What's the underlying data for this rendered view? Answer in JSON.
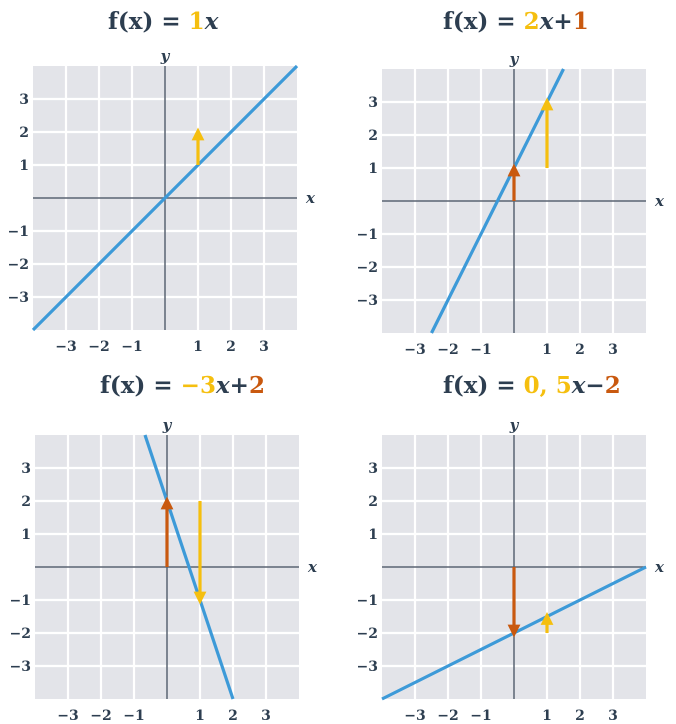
{
  "colors": {
    "grid_bg": "#e3e4e9",
    "grid_line": "#ffffff",
    "axis": "#5a6472",
    "line": "#3d9ad8",
    "slope": "#f5bf0f",
    "intercept": "#c9590f",
    "text": "#2d3e50"
  },
  "chart_data": [
    {
      "type": "line",
      "title": {
        "prefix": "f(x) =",
        "slope": "1",
        "var": "x",
        "sign": "",
        "intercept": ""
      },
      "xlabel": "x",
      "ylabel": "y",
      "xlim": [
        -4,
        4
      ],
      "ylim": [
        -4,
        4
      ],
      "x_ticks": [
        "−3",
        "−2",
        "−1",
        "1",
        "2",
        "3"
      ],
      "y_ticks": [
        "3",
        "2",
        "1",
        "−1",
        "−2",
        "−3"
      ],
      "slope_value": 1,
      "intercept_value": 0,
      "line_points": [
        [
          -4,
          -4
        ],
        [
          4,
          4
        ]
      ],
      "slope_arrow": {
        "from": [
          1,
          1
        ],
        "to": [
          1,
          2
        ]
      },
      "intercept_arrow": null
    },
    {
      "type": "line",
      "title": {
        "prefix": "f(x) =",
        "slope": "2",
        "var": "x",
        "sign": "+",
        "intercept": "1"
      },
      "xlabel": "x",
      "ylabel": "y",
      "xlim": [
        -4,
        4
      ],
      "ylim": [
        -4,
        4
      ],
      "x_ticks": [
        "−3",
        "−2",
        "−1",
        "1",
        "2",
        "3"
      ],
      "y_ticks": [
        "3",
        "2",
        "1",
        "−1",
        "−2",
        "−3"
      ],
      "slope_value": 2,
      "intercept_value": 1,
      "line_points": [
        [
          -2.5,
          -4
        ],
        [
          1.5,
          4
        ]
      ],
      "slope_arrow": {
        "from": [
          1,
          1
        ],
        "to": [
          1,
          3
        ]
      },
      "intercept_arrow": {
        "from": [
          0,
          0
        ],
        "to": [
          0,
          1
        ]
      }
    },
    {
      "type": "line",
      "title": {
        "prefix": "f(x) =",
        "slope": "−3",
        "var": "x",
        "sign": "+",
        "intercept": "2"
      },
      "xlabel": "x",
      "ylabel": "y",
      "xlim": [
        -4,
        4
      ],
      "ylim": [
        -4,
        4
      ],
      "x_ticks": [
        "−3",
        "−2",
        "−1",
        "1",
        "2",
        "3"
      ],
      "y_ticks": [
        "3",
        "2",
        "1",
        "−1",
        "−2",
        "−3"
      ],
      "slope_value": -3,
      "intercept_value": 2,
      "line_points": [
        [
          -0.667,
          4
        ],
        [
          2,
          -4
        ]
      ],
      "slope_arrow": {
        "from": [
          1,
          2
        ],
        "to": [
          1,
          -1
        ]
      },
      "intercept_arrow": {
        "from": [
          0,
          0
        ],
        "to": [
          0,
          2
        ]
      }
    },
    {
      "type": "line",
      "title": {
        "prefix": "f(x) =",
        "slope": "0, 5",
        "var": "x",
        "sign": "−",
        "intercept": "2"
      },
      "xlabel": "x",
      "ylabel": "y",
      "xlim": [
        -4,
        4
      ],
      "ylim": [
        -4,
        4
      ],
      "x_ticks": [
        "−3",
        "−2",
        "−1",
        "1",
        "2",
        "3"
      ],
      "y_ticks": [
        "3",
        "2",
        "1",
        "−1",
        "−2",
        "−3"
      ],
      "slope_value": 0.5,
      "intercept_value": -2,
      "line_points": [
        [
          -4,
          -4
        ],
        [
          4,
          0
        ]
      ],
      "slope_arrow": {
        "from": [
          1,
          -2
        ],
        "to": [
          1,
          -1.5
        ]
      },
      "intercept_arrow": {
        "from": [
          0,
          0
        ],
        "to": [
          0,
          -2
        ]
      }
    }
  ]
}
